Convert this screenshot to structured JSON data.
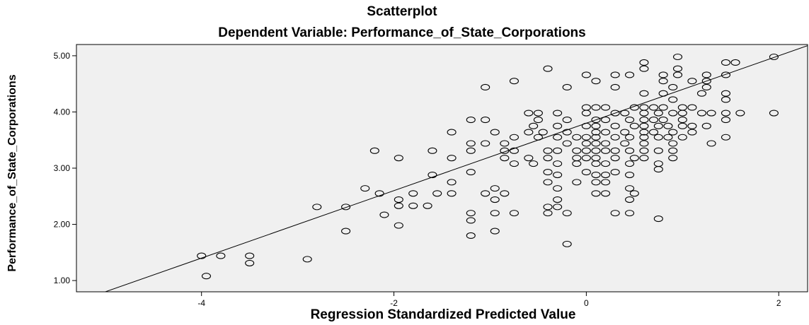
{
  "chart_data": {
    "type": "scatter",
    "title": "Scatterplot",
    "subtitle": "Dependent Variable: Performance_of_State_Corporations",
    "xlabel": "Regression Standardized Predicted Value",
    "ylabel": "Performance_of_State_Corporations",
    "xlim": [
      -5.3,
      2.3
    ],
    "ylim": [
      0.8,
      5.2
    ],
    "x_ticks": [
      {
        "value": -4,
        "label": "-4"
      },
      {
        "value": -2,
        "label": "-2"
      },
      {
        "value": 0,
        "label": "0"
      },
      {
        "value": 2,
        "label": "2"
      }
    ],
    "y_ticks": [
      {
        "value": 1,
        "label": "1.00"
      },
      {
        "value": 2,
        "label": "2.00"
      },
      {
        "value": 3,
        "label": "3.00"
      },
      {
        "value": 4,
        "label": "4.00"
      },
      {
        "value": 5,
        "label": "5.00"
      }
    ],
    "grid": false,
    "fit_line": {
      "slope": 0.6,
      "intercept": 3.8
    },
    "colors": {
      "plot_background": "#f0f0f0",
      "marker_stroke": "#000000",
      "line": "#000000"
    },
    "points": [
      [
        -4.0,
        1.44
      ],
      [
        -3.8,
        1.44
      ],
      [
        -3.5,
        1.44
      ],
      [
        -3.5,
        1.31
      ],
      [
        -2.9,
        1.38
      ],
      [
        -3.95,
        1.08
      ],
      [
        -2.8,
        2.31
      ],
      [
        -2.5,
        2.31
      ],
      [
        -2.5,
        1.88
      ],
      [
        -2.3,
        2.64
      ],
      [
        -2.2,
        3.31
      ],
      [
        -2.15,
        2.55
      ],
      [
        -2.1,
        2.17
      ],
      [
        -1.95,
        3.18
      ],
      [
        -1.95,
        2.44
      ],
      [
        -1.95,
        2.33
      ],
      [
        -1.95,
        1.98
      ],
      [
        -1.8,
        2.55
      ],
      [
        -1.8,
        2.33
      ],
      [
        -1.65,
        2.33
      ],
      [
        -1.6,
        2.88
      ],
      [
        -1.6,
        3.31
      ],
      [
        -1.55,
        2.55
      ],
      [
        -1.4,
        2.75
      ],
      [
        -1.4,
        3.18
      ],
      [
        -1.4,
        3.64
      ],
      [
        -1.4,
        2.55
      ],
      [
        -1.2,
        3.31
      ],
      [
        -1.2,
        3.44
      ],
      [
        -1.2,
        2.93
      ],
      [
        -1.2,
        2.2
      ],
      [
        -1.2,
        2.07
      ],
      [
        -1.2,
        1.8
      ],
      [
        -1.2,
        3.86
      ],
      [
        -1.05,
        3.86
      ],
      [
        -1.05,
        3.44
      ],
      [
        -1.05,
        2.55
      ],
      [
        -1.05,
        4.44
      ],
      [
        -0.95,
        3.64
      ],
      [
        -0.95,
        2.64
      ],
      [
        -0.95,
        2.44
      ],
      [
        -0.95,
        2.2
      ],
      [
        -0.95,
        1.88
      ],
      [
        -0.85,
        3.44
      ],
      [
        -0.85,
        3.18
      ],
      [
        -0.85,
        3.31
      ],
      [
        -0.85,
        2.55
      ],
      [
        -0.75,
        3.08
      ],
      [
        -0.75,
        3.31
      ],
      [
        -0.75,
        3.55
      ],
      [
        -0.75,
        2.2
      ],
      [
        -0.75,
        4.55
      ],
      [
        -0.6,
        3.64
      ],
      [
        -0.6,
        3.98
      ],
      [
        -0.6,
        3.18
      ],
      [
        -0.55,
        3.75
      ],
      [
        -0.55,
        3.08
      ],
      [
        -0.5,
        3.55
      ],
      [
        -0.5,
        3.98
      ],
      [
        -0.5,
        3.86
      ],
      [
        -0.45,
        3.64
      ],
      [
        -0.4,
        3.31
      ],
      [
        -0.4,
        3.18
      ],
      [
        -0.4,
        2.93
      ],
      [
        -0.4,
        2.75
      ],
      [
        -0.4,
        2.2
      ],
      [
        -0.4,
        2.31
      ],
      [
        -0.4,
        4.77
      ],
      [
        -0.3,
        3.98
      ],
      [
        -0.3,
        3.75
      ],
      [
        -0.3,
        3.55
      ],
      [
        -0.3,
        3.31
      ],
      [
        -0.3,
        3.08
      ],
      [
        -0.3,
        2.88
      ],
      [
        -0.3,
        2.64
      ],
      [
        -0.3,
        2.44
      ],
      [
        -0.3,
        2.31
      ],
      [
        -0.2,
        3.64
      ],
      [
        -0.2,
        3.86
      ],
      [
        -0.2,
        4.44
      ],
      [
        -0.2,
        3.44
      ],
      [
        -0.2,
        2.2
      ],
      [
        -0.2,
        1.65
      ],
      [
        -0.1,
        3.55
      ],
      [
        -0.1,
        3.31
      ],
      [
        -0.1,
        3.18
      ],
      [
        -0.1,
        3.08
      ],
      [
        -0.1,
        2.75
      ],
      [
        0.0,
        4.08
      ],
      [
        0.0,
        3.98
      ],
      [
        0.0,
        3.75
      ],
      [
        0.0,
        3.55
      ],
      [
        0.0,
        3.44
      ],
      [
        0.0,
        3.31
      ],
      [
        0.0,
        3.18
      ],
      [
        0.0,
        2.93
      ],
      [
        0.0,
        4.66
      ],
      [
        0.1,
        4.08
      ],
      [
        0.1,
        3.86
      ],
      [
        0.1,
        3.75
      ],
      [
        0.1,
        3.64
      ],
      [
        0.1,
        3.55
      ],
      [
        0.1,
        3.44
      ],
      [
        0.1,
        3.31
      ],
      [
        0.1,
        3.18
      ],
      [
        0.1,
        3.08
      ],
      [
        0.1,
        2.88
      ],
      [
        0.1,
        2.75
      ],
      [
        0.1,
        2.55
      ],
      [
        0.1,
        4.55
      ],
      [
        0.2,
        4.08
      ],
      [
        0.2,
        3.86
      ],
      [
        0.2,
        3.64
      ],
      [
        0.2,
        3.44
      ],
      [
        0.2,
        3.31
      ],
      [
        0.2,
        3.08
      ],
      [
        0.2,
        2.88
      ],
      [
        0.2,
        2.75
      ],
      [
        0.2,
        2.55
      ],
      [
        0.3,
        4.44
      ],
      [
        0.3,
        4.66
      ],
      [
        0.3,
        3.98
      ],
      [
        0.3,
        3.75
      ],
      [
        0.3,
        3.55
      ],
      [
        0.3,
        3.31
      ],
      [
        0.3,
        3.18
      ],
      [
        0.3,
        2.93
      ],
      [
        0.3,
        2.2
      ],
      [
        0.4,
        3.98
      ],
      [
        0.4,
        3.64
      ],
      [
        0.4,
        3.44
      ],
      [
        0.45,
        3.86
      ],
      [
        0.45,
        3.55
      ],
      [
        0.45,
        3.31
      ],
      [
        0.45,
        3.08
      ],
      [
        0.45,
        2.88
      ],
      [
        0.45,
        2.64
      ],
      [
        0.45,
        2.44
      ],
      [
        0.45,
        2.2
      ],
      [
        0.45,
        4.66
      ],
      [
        0.5,
        4.08
      ],
      [
        0.5,
        3.75
      ],
      [
        0.5,
        3.18
      ],
      [
        0.5,
        2.55
      ],
      [
        0.6,
        4.33
      ],
      [
        0.6,
        4.08
      ],
      [
        0.6,
        3.98
      ],
      [
        0.6,
        3.86
      ],
      [
        0.6,
        3.75
      ],
      [
        0.6,
        3.64
      ],
      [
        0.6,
        3.55
      ],
      [
        0.6,
        3.44
      ],
      [
        0.6,
        3.31
      ],
      [
        0.6,
        3.18
      ],
      [
        0.6,
        4.77
      ],
      [
        0.6,
        4.88
      ],
      [
        0.7,
        3.64
      ],
      [
        0.7,
        4.08
      ],
      [
        0.7,
        3.86
      ],
      [
        0.75,
        3.98
      ],
      [
        0.75,
        3.75
      ],
      [
        0.75,
        3.55
      ],
      [
        0.75,
        3.31
      ],
      [
        0.75,
        3.08
      ],
      [
        0.75,
        2.98
      ],
      [
        0.75,
        2.1
      ],
      [
        0.8,
        4.66
      ],
      [
        0.8,
        4.55
      ],
      [
        0.8,
        4.33
      ],
      [
        0.8,
        4.08
      ],
      [
        0.8,
        3.86
      ],
      [
        0.85,
        3.75
      ],
      [
        0.85,
        3.55
      ],
      [
        0.9,
        3.98
      ],
      [
        0.9,
        3.64
      ],
      [
        0.9,
        3.44
      ],
      [
        0.9,
        3.31
      ],
      [
        0.9,
        3.18
      ],
      [
        0.9,
        4.44
      ],
      [
        0.9,
        4.22
      ],
      [
        0.95,
        4.98
      ],
      [
        0.95,
        4.77
      ],
      [
        0.95,
        4.66
      ],
      [
        1.0,
        4.08
      ],
      [
        1.0,
        3.86
      ],
      [
        1.0,
        3.75
      ],
      [
        1.0,
        3.55
      ],
      [
        1.0,
        3.98
      ],
      [
        1.1,
        4.55
      ],
      [
        1.1,
        4.08
      ],
      [
        1.1,
        3.75
      ],
      [
        1.1,
        3.64
      ],
      [
        1.2,
        3.98
      ],
      [
        1.2,
        4.33
      ],
      [
        1.25,
        4.66
      ],
      [
        1.25,
        4.55
      ],
      [
        1.25,
        4.44
      ],
      [
        1.25,
        3.75
      ],
      [
        1.3,
        3.44
      ],
      [
        1.3,
        3.98
      ],
      [
        1.45,
        4.88
      ],
      [
        1.45,
        4.66
      ],
      [
        1.45,
        4.33
      ],
      [
        1.45,
        4.22
      ],
      [
        1.45,
        3.98
      ],
      [
        1.45,
        3.86
      ],
      [
        1.45,
        3.55
      ],
      [
        1.55,
        4.88
      ],
      [
        1.6,
        3.98
      ],
      [
        1.95,
        4.98
      ],
      [
        1.95,
        3.98
      ]
    ]
  }
}
